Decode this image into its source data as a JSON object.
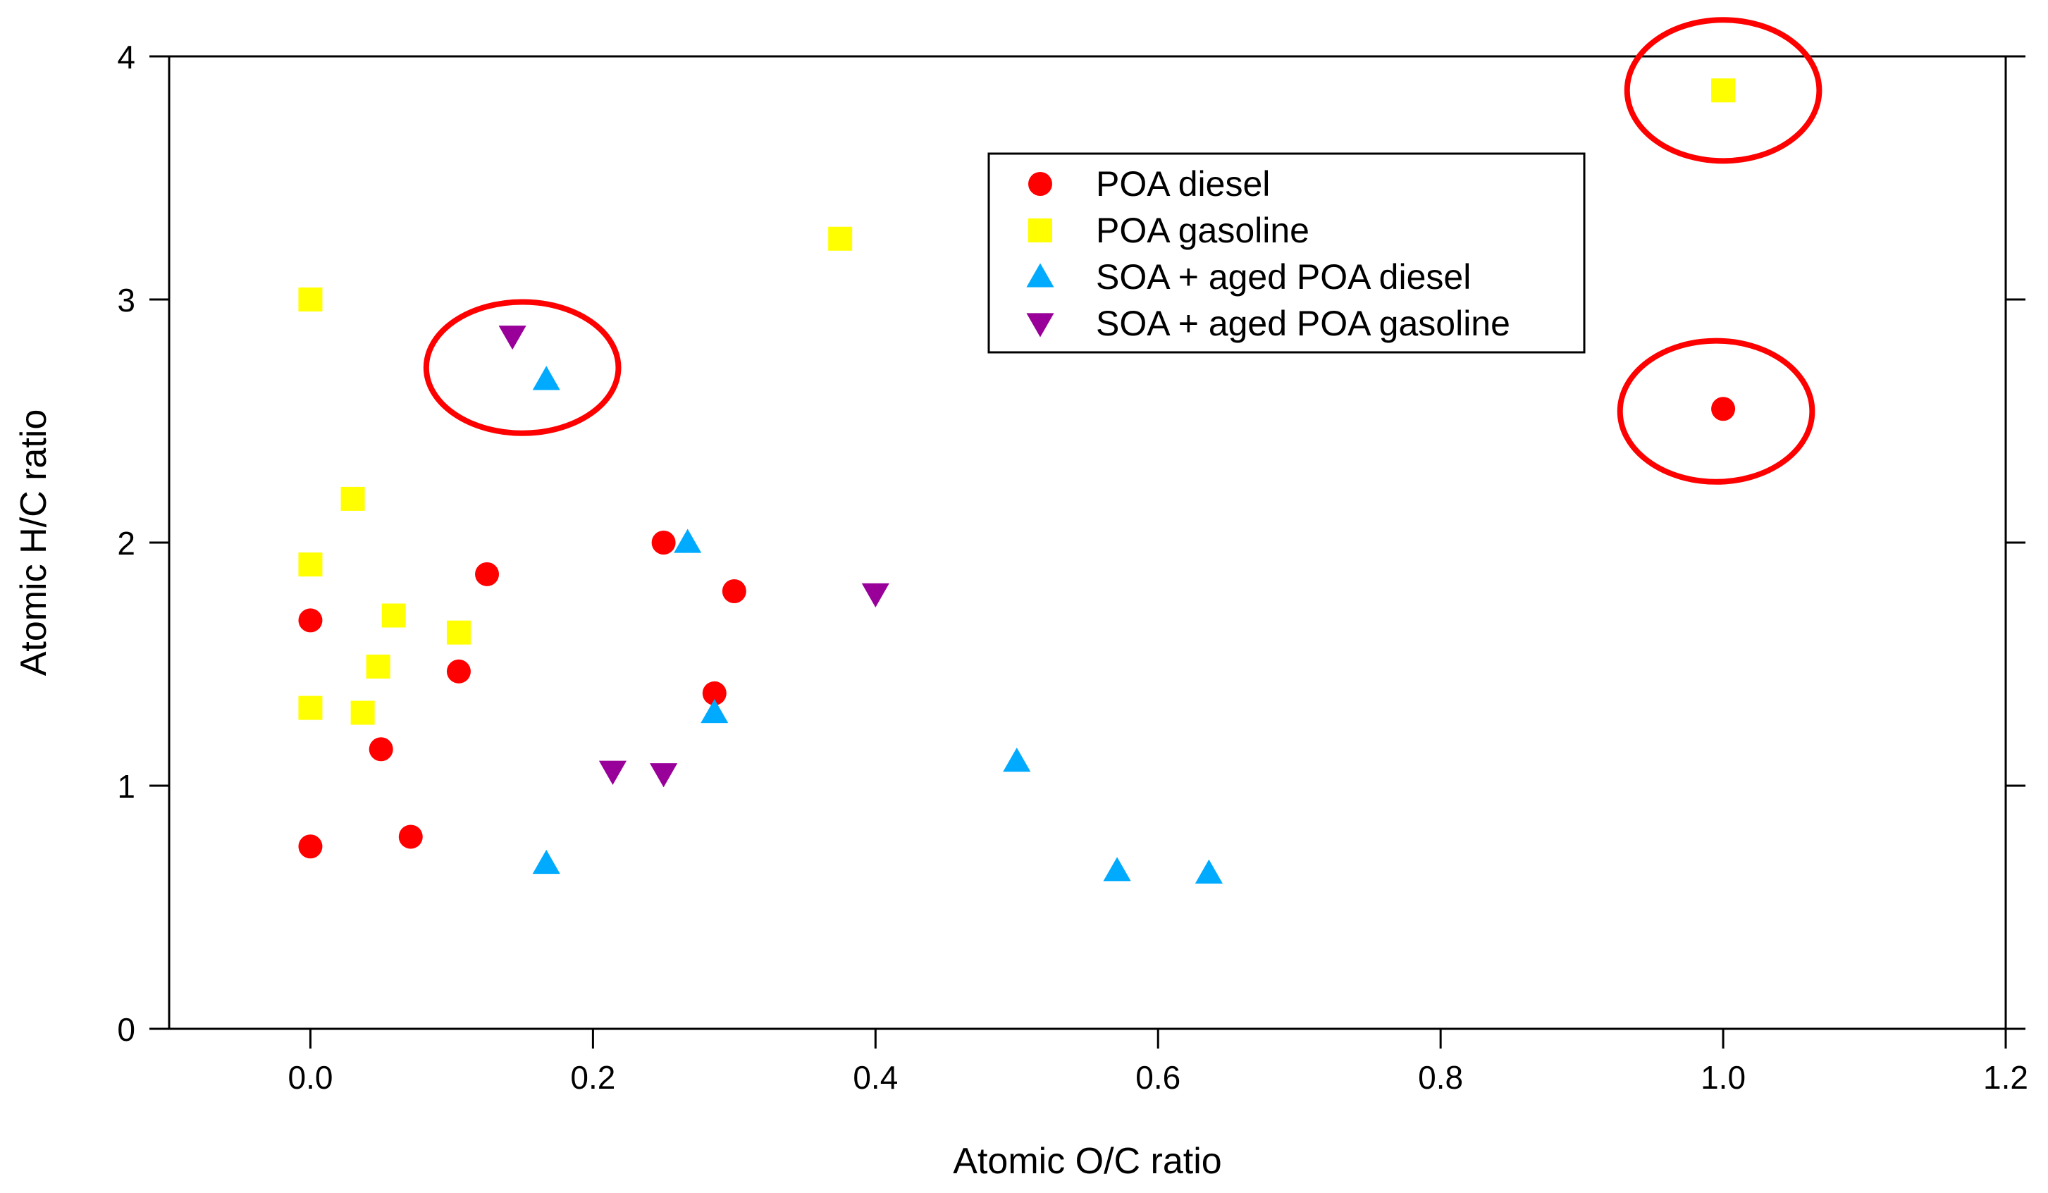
{
  "chart_data": {
    "type": "scatter",
    "title": "",
    "xlabel": "Atomic O/C ratio",
    "ylabel": "Atomic H/C ratio",
    "xlim": [
      -0.1,
      1.2
    ],
    "ylim": [
      0,
      4
    ],
    "xticks": [
      "0.0",
      "0.2",
      "0.4",
      "0.6",
      "0.8",
      "1.0",
      "1.2"
    ],
    "yticks": [
      "0",
      "1",
      "2",
      "3",
      "4"
    ],
    "legend_position": "top-center-right",
    "grid": false,
    "series": [
      {
        "name": "POA diesel",
        "marker": "circle",
        "color": "#ff0000",
        "points": [
          [
            0.0,
            1.68
          ],
          [
            0.0,
            0.75
          ],
          [
            0.05,
            1.15
          ],
          [
            0.071,
            0.79
          ],
          [
            0.105,
            1.47
          ],
          [
            0.125,
            1.87
          ],
          [
            0.25,
            2.0
          ],
          [
            0.286,
            1.38
          ],
          [
            0.3,
            1.8
          ],
          [
            1.0,
            2.55
          ]
        ]
      },
      {
        "name": "POA gasoline",
        "marker": "square",
        "color": "#ffff00",
        "points": [
          [
            0.0,
            3.0
          ],
          [
            0.0,
            1.91
          ],
          [
            0.0,
            1.32
          ],
          [
            0.03,
            2.18
          ],
          [
            0.037,
            1.3
          ],
          [
            0.048,
            1.49
          ],
          [
            0.059,
            1.7
          ],
          [
            0.105,
            1.63
          ],
          [
            0.375,
            3.25
          ],
          [
            1.0,
            3.86
          ]
        ]
      },
      {
        "name": "SOA + aged POA diesel",
        "marker": "triangle-up",
        "color": "#00aaff",
        "points": [
          [
            0.167,
            2.67
          ],
          [
            0.167,
            0.68
          ],
          [
            0.267,
            2.0
          ],
          [
            0.286,
            1.3
          ],
          [
            0.5,
            1.1
          ],
          [
            0.571,
            0.65
          ],
          [
            0.636,
            0.64
          ]
        ]
      },
      {
        "name": "SOA + aged POA gasoline",
        "marker": "triangle-down",
        "color": "#990099",
        "points": [
          [
            0.143,
            2.85
          ],
          [
            0.214,
            1.06
          ],
          [
            0.25,
            1.05
          ],
          [
            0.4,
            1.79
          ]
        ]
      }
    ],
    "annotations": [
      {
        "shape": "ellipse",
        "color": "#ff0000",
        "center": [
          0.15,
          2.72
        ],
        "rx": 0.068,
        "ry": 0.27
      },
      {
        "shape": "ellipse",
        "color": "#ff0000",
        "center": [
          1.0,
          3.86
        ],
        "rx": 0.068,
        "ry": 0.29
      },
      {
        "shape": "ellipse",
        "color": "#ff0000",
        "center": [
          0.995,
          2.54
        ],
        "rx": 0.068,
        "ry": 0.29
      }
    ]
  }
}
